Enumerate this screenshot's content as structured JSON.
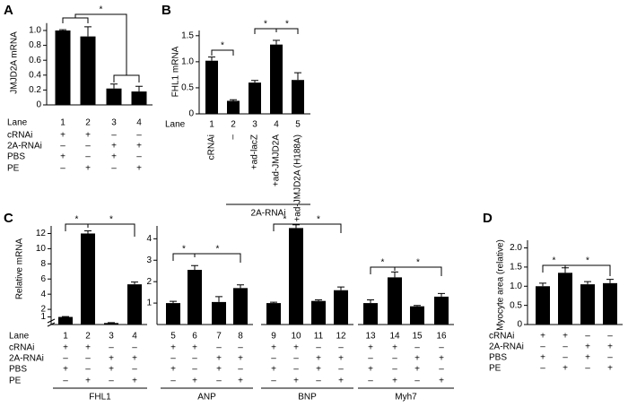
{
  "chart_data": [
    {
      "type": "bar",
      "panel": "A",
      "y_label": "JMJD2A mRNA",
      "ylim": [
        0,
        1.1
      ],
      "yticks": [
        0,
        0.2,
        0.4,
        0.6,
        0.8,
        {
          "value": 1,
          "label": "1.0"
        }
      ],
      "lane_label": "Lane",
      "lanes": [
        1,
        2,
        3,
        4
      ],
      "values": [
        1.0,
        0.92,
        0.22,
        0.18
      ],
      "errors": [
        0.01,
        0.13,
        0.06,
        0.07
      ],
      "color": "#000000",
      "condition_labels": [
        "cRNAi",
        "2A-RNAi",
        "PBS",
        "PE"
      ],
      "marks": [
        [
          "+",
          "+",
          "–",
          "–"
        ],
        [
          "–",
          "–",
          "+",
          "+"
        ],
        [
          "+",
          "–",
          "+",
          "–"
        ],
        [
          "–",
          "+",
          "–",
          "+"
        ]
      ],
      "annotations": [
        "*"
      ]
    },
    {
      "type": "bar",
      "panel": "B",
      "y_label": "FHL1 mRNA",
      "ylim": [
        0,
        1.6
      ],
      "yticks": [
        0,
        0.5,
        {
          "value": 1,
          "label": "1.0"
        },
        1.5
      ],
      "lane_label": "Lane",
      "lanes": [
        1,
        2,
        3,
        4,
        5
      ],
      "categories": [
        "cRNAi",
        "–",
        "+ad-lacZ",
        "+ad-JMJD2A",
        "+ad-JMJD2A (H188A)"
      ],
      "group_label": "2A-RNAi",
      "values": [
        1.02,
        0.25,
        0.6,
        1.33,
        0.65
      ],
      "errors": [
        0.07,
        0.02,
        0.04,
        0.08,
        0.14
      ],
      "color": "#000000",
      "annotations": [
        "*",
        "*",
        "*"
      ]
    },
    {
      "type": "bar",
      "panel": "C",
      "y_label": "Relative mRNA",
      "lane_label": "Lane",
      "color": "#000000",
      "condition_labels": [
        "cRNAi",
        "2A-RNAi",
        "PBS",
        "PE"
      ],
      "groups": [
        {
          "name": "FHL1",
          "ylim": [
            0,
            13
          ],
          "yticks": [
            1,
            2,
            4,
            6,
            8,
            10,
            12
          ],
          "lanes": [
            1,
            2,
            3,
            4
          ],
          "values": [
            1.0,
            12.0,
            0.2,
            5.3
          ],
          "errors": [
            0.05,
            0.35,
            0.05,
            0.3
          ],
          "marks": [
            [
              "+",
              "+",
              "–",
              "–"
            ],
            [
              "–",
              "–",
              "+",
              "+"
            ],
            [
              "+",
              "–",
              "+",
              "–"
            ],
            [
              "–",
              "+",
              "–",
              "+"
            ]
          ],
          "annotations": [
            "*",
            "*"
          ]
        },
        {
          "name": "ANP",
          "ylim": [
            0,
            4.6
          ],
          "yticks": [
            1,
            2,
            3,
            4
          ],
          "lanes": [
            5,
            6,
            7,
            8
          ],
          "values": [
            1.0,
            2.55,
            1.05,
            1.7
          ],
          "errors": [
            0.08,
            0.2,
            0.25,
            0.15
          ],
          "marks": [
            [
              "+",
              "+",
              "–",
              "–"
            ],
            [
              "–",
              "–",
              "+",
              "+"
            ],
            [
              "+",
              "–",
              "+",
              "–"
            ],
            [
              "–",
              "+",
              "–",
              "+"
            ]
          ],
          "annotations": [
            "*",
            "*"
          ]
        },
        {
          "name": "BNP",
          "lanes": [
            9,
            10,
            11,
            12
          ],
          "values": [
            1.0,
            4.5,
            1.1,
            1.6
          ],
          "errors": [
            0.04,
            0.15,
            0.05,
            0.15
          ],
          "marks": [
            [
              "+",
              "+",
              "–",
              "–"
            ],
            [
              "–",
              "–",
              "+",
              "+"
            ],
            [
              "+",
              "–",
              "+",
              "–"
            ],
            [
              "–",
              "+",
              "–",
              "+"
            ]
          ],
          "annotations": [
            "*",
            "*"
          ]
        },
        {
          "name": "Myh7",
          "lanes": [
            13,
            14,
            15,
            16
          ],
          "values": [
            1.0,
            2.2,
            0.85,
            1.3
          ],
          "errors": [
            0.15,
            0.25,
            0.04,
            0.15
          ],
          "marks": [
            [
              "+",
              "+",
              "–",
              "–"
            ],
            [
              "–",
              "–",
              "+",
              "+"
            ],
            [
              "+",
              "–",
              "+",
              "–"
            ],
            [
              "–",
              "+",
              "–",
              "+"
            ]
          ],
          "annotations": [
            "*",
            "*"
          ]
        }
      ]
    },
    {
      "type": "bar",
      "panel": "D",
      "y_label": "Myocyte area (relative)",
      "ylim": [
        0,
        2.2
      ],
      "yticks": [
        0,
        0.5,
        {
          "value": 1,
          "label": "1.0"
        },
        1.5,
        {
          "value": 2,
          "label": "2.0"
        }
      ],
      "values": [
        1.0,
        1.35,
        1.05,
        1.08
      ],
      "errors": [
        0.08,
        0.13,
        0.07,
        0.1
      ],
      "color": "#000000",
      "condition_labels": [
        "cRNAi",
        "2A-RNAi",
        "PBS",
        "PE"
      ],
      "marks": [
        [
          "+",
          "+",
          "–",
          "–"
        ],
        [
          "–",
          "–",
          "+",
          "+"
        ],
        [
          "+",
          "–",
          "+",
          "–"
        ],
        [
          "–",
          "+",
          "–",
          "+"
        ]
      ],
      "annotations": [
        "*",
        "*"
      ]
    }
  ]
}
